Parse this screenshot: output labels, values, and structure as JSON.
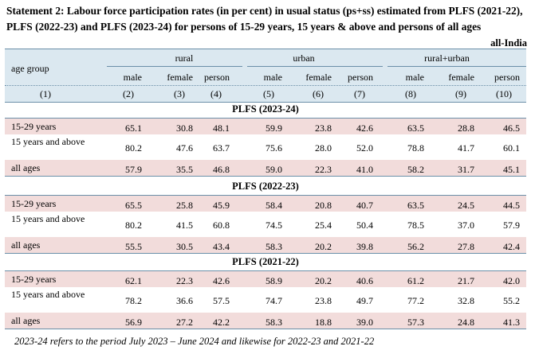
{
  "title": "Statement 2: Labour force participation rates (in per cent) in usual status (ps+ss) estimated from PLFS (2021-22), PLFS (2022-23) and PLFS (2023-24) for persons of 15-29 years, 15 years & above and persons of all ages",
  "region": "all-India",
  "header": {
    "age_group": "age group",
    "groups": [
      "rural",
      "urban",
      "rural+urban"
    ],
    "columns": [
      "male",
      "female",
      "person",
      "male",
      "female",
      "person",
      "male",
      "female",
      "person"
    ],
    "col_numbers": [
      "(1)",
      "(2)",
      "(3)",
      "(4)",
      "(5)",
      "(6)",
      "(7)",
      "(8)",
      "(9)",
      "(10)"
    ]
  },
  "sections": [
    {
      "title": "PLFS (2023-24)",
      "rows": [
        {
          "label": "15-29 years",
          "values": [
            "65.1",
            "30.8",
            "48.1",
            "59.9",
            "23.8",
            "42.6",
            "63.5",
            "28.8",
            "46.5"
          ]
        },
        {
          "label": "15 years and above",
          "values": [
            "80.2",
            "47.6",
            "63.7",
            "75.6",
            "28.0",
            "52.0",
            "78.8",
            "41.7",
            "60.1"
          ]
        },
        {
          "label": "all ages",
          "values": [
            "57.9",
            "35.5",
            "46.8",
            "59.0",
            "22.3",
            "41.0",
            "58.2",
            "31.7",
            "45.1"
          ]
        }
      ]
    },
    {
      "title": "PLFS (2022-23)",
      "rows": [
        {
          "label": "15-29 years",
          "values": [
            "65.5",
            "25.8",
            "45.9",
            "58.4",
            "20.8",
            "40.7",
            "63.5",
            "24.5",
            "44.5"
          ]
        },
        {
          "label": "15 years and above",
          "values": [
            "80.2",
            "41.5",
            "60.8",
            "74.5",
            "25.4",
            "50.4",
            "78.5",
            "37.0",
            "57.9"
          ]
        },
        {
          "label": "all ages",
          "values": [
            "55.5",
            "30.5",
            "43.4",
            "58.3",
            "20.2",
            "39.8",
            "56.2",
            "27.8",
            "42.4"
          ]
        }
      ]
    },
    {
      "title": "PLFS (2021-22)",
      "rows": [
        {
          "label": "15-29 years",
          "values": [
            "62.1",
            "22.3",
            "42.6",
            "58.9",
            "20.2",
            "40.6",
            "61.2",
            "21.7",
            "42.0"
          ]
        },
        {
          "label": "15 years and above",
          "values": [
            "78.2",
            "36.6",
            "57.5",
            "74.7",
            "23.8",
            "49.7",
            "77.2",
            "32.8",
            "55.2"
          ]
        },
        {
          "label": "all ages",
          "values": [
            "56.9",
            "27.2",
            "42.2",
            "58.3",
            "18.8",
            "39.0",
            "57.3",
            "24.8",
            "41.3"
          ]
        }
      ]
    }
  ],
  "footnote": "2023-24 refers to the period July 2023 – June 2024 and likewise for 2022-23 and 2021-22"
}
